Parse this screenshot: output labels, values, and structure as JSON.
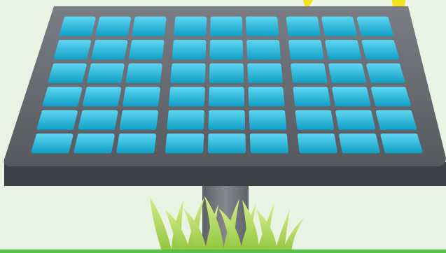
{
  "scene": {
    "subject": "solar-panel",
    "colors": {
      "background": "#e8f3e4",
      "frame_light": "#7b7e84",
      "frame_dark": "#55585d",
      "frame_edge": "#3d4044",
      "cell_top": "#5fd6f3",
      "cell_bottom": "#0f9fc6",
      "pole": "#6f7277",
      "grass_light": "#d5ec8a",
      "grass_dark": "#8fc43c",
      "sun_ray": "#f4e21a",
      "ground_line": "#5cc14a"
    },
    "panel": {
      "sections": 3,
      "columns_per_section": 3,
      "rows": 6
    },
    "icons": [
      "sun-ray-icon",
      "grass-icon"
    ]
  }
}
